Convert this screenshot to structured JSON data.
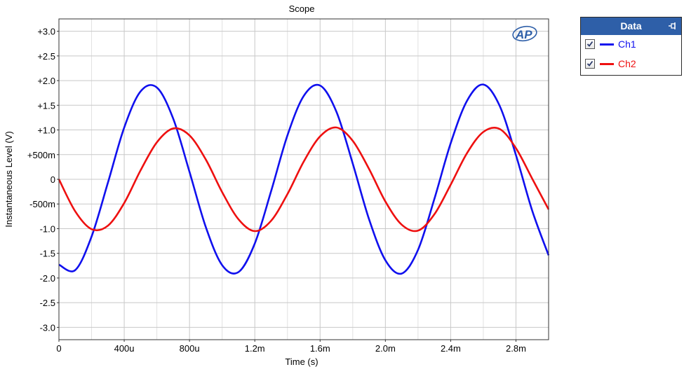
{
  "colors": {
    "ch1": "#1010ee",
    "ch2": "#ee1010",
    "grid": "#c8c8c8",
    "header": "#2e5fa8"
  },
  "chart_data": {
    "type": "line",
    "title": "Scope",
    "xlabel": "Time (s)",
    "ylabel": "Instantaneous Level (V)",
    "xlim": [
      0,
      0.003
    ],
    "ylim": [
      -3.25,
      3.25
    ],
    "x_ticks": [
      {
        "value": 0,
        "label": "0"
      },
      {
        "value": 0.0004,
        "label": "400u"
      },
      {
        "value": 0.0008,
        "label": "800u"
      },
      {
        "value": 0.0012,
        "label": "1.2m"
      },
      {
        "value": 0.0016,
        "label": "1.6m"
      },
      {
        "value": 0.002,
        "label": "2.0m"
      },
      {
        "value": 0.0024,
        "label": "2.4m"
      },
      {
        "value": 0.0028,
        "label": "2.8m"
      }
    ],
    "y_ticks": [
      {
        "value": 3.0,
        "label": "+3.0"
      },
      {
        "value": 2.5,
        "label": "+2.5"
      },
      {
        "value": 2.0,
        "label": "+2.0"
      },
      {
        "value": 1.5,
        "label": "+1.5"
      },
      {
        "value": 1.0,
        "label": "+1.0"
      },
      {
        "value": 0.5,
        "label": "+500m"
      },
      {
        "value": 0,
        "label": "0"
      },
      {
        "value": -0.5,
        "label": "-500m"
      },
      {
        "value": -1.0,
        "label": "-1.0"
      },
      {
        "value": -1.5,
        "label": "-1.5"
      },
      {
        "value": -2.0,
        "label": "-2.0"
      },
      {
        "value": -2.5,
        "label": "-2.5"
      },
      {
        "value": -3.0,
        "label": "-3.0"
      }
    ],
    "grid": true,
    "legend_position": "top-right outside",
    "series": [
      {
        "name": "Ch1",
        "color": "#1010ee",
        "x": [
          0,
          0.0001,
          0.0002,
          0.0003,
          0.0004,
          0.0005,
          0.0006,
          0.0007,
          0.0008,
          0.0009,
          0.001,
          0.0011,
          0.0012,
          0.0013,
          0.0014,
          0.0015,
          0.0016,
          0.0017,
          0.0018,
          0.0019,
          0.002,
          0.0021,
          0.0022,
          0.0023,
          0.0024,
          0.0025,
          0.0026,
          0.0027,
          0.0028,
          0.0029,
          0.003
        ],
        "y": [
          -1.73,
          -1.84,
          -1.16,
          -0.07,
          1.05,
          1.78,
          1.86,
          1.23,
          0.15,
          -0.97,
          -1.74,
          -1.88,
          -1.3,
          -0.24,
          0.89,
          1.69,
          1.9,
          1.37,
          0.32,
          -0.81,
          -1.64,
          -1.91,
          -1.43,
          -0.4,
          0.73,
          1.59,
          1.92,
          1.49,
          0.49,
          -0.64,
          -1.54
        ]
      },
      {
        "name": "Ch2",
        "color": "#ee1010",
        "x": [
          0,
          0.0001,
          0.0002,
          0.0003,
          0.0004,
          0.0005,
          0.0006,
          0.0007,
          0.0008,
          0.0009,
          0.001,
          0.0011,
          0.0012,
          0.0013,
          0.0014,
          0.0015,
          0.0016,
          0.0017,
          0.0018,
          0.0019,
          0.002,
          0.0021,
          0.0022,
          0.0023,
          0.0024,
          0.0025,
          0.0026,
          0.0027,
          0.0028,
          0.0029,
          0.003
        ],
        "y": [
          0.0,
          -0.65,
          -1.01,
          -0.94,
          -0.48,
          0.18,
          0.75,
          1.03,
          0.89,
          0.4,
          -0.26,
          -0.81,
          -1.05,
          -0.84,
          -0.3,
          0.36,
          0.87,
          1.05,
          0.78,
          0.21,
          -0.45,
          -0.92,
          -1.04,
          -0.71,
          -0.11,
          0.53,
          0.96,
          1.02,
          0.63,
          0.01,
          -0.61
        ]
      }
    ]
  },
  "legend": {
    "title": "Data",
    "items": [
      {
        "label": "Ch1",
        "checked": true
      },
      {
        "label": "Ch2",
        "checked": true
      }
    ]
  }
}
